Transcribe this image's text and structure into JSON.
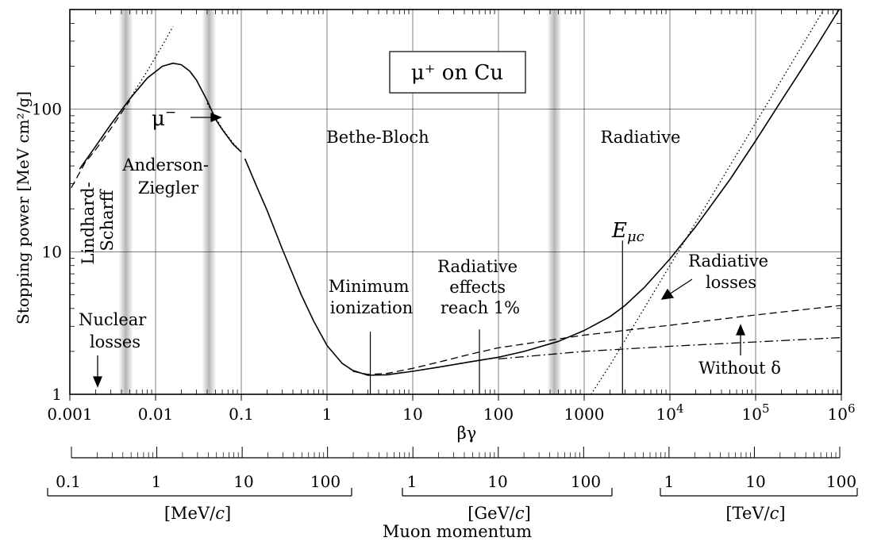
{
  "chart_data": {
    "type": "line",
    "title": "μ⁺ on Cu",
    "xlabel": "βγ",
    "ylabel": "Stopping power [MeV cm²/g]",
    "x_scale": "log",
    "y_scale": "log",
    "xlim": [
      0.001,
      1000000
    ],
    "ylim": [
      1,
      500
    ],
    "grid": true,
    "x_ticks": [
      {
        "value": 0.001,
        "label": "0.001"
      },
      {
        "value": 0.01,
        "label": "0.01"
      },
      {
        "value": 0.1,
        "label": "0.1"
      },
      {
        "value": 1,
        "label": "1"
      },
      {
        "value": 10,
        "label": "10"
      },
      {
        "value": 100,
        "label": "100"
      },
      {
        "value": 1000,
        "label": "1000"
      },
      {
        "value": 10000,
        "label": "10",
        "exp": "4"
      },
      {
        "value": 100000,
        "label": "10",
        "exp": "5"
      },
      {
        "value": 1000000,
        "label": "10",
        "exp": "6"
      }
    ],
    "y_ticks": [
      {
        "value": 1,
        "label": "1"
      },
      {
        "value": 10,
        "label": "10"
      },
      {
        "value": 100,
        "label": "100"
      }
    ],
    "series": [
      {
        "style": "solid",
        "x": [
          0.0013,
          0.002,
          0.003,
          0.005,
          0.008,
          0.012,
          0.016,
          0.02,
          0.025,
          0.03,
          0.04,
          0.05,
          0.06,
          0.08,
          0.1
        ],
        "y": [
          38,
          55,
          78,
          118,
          165,
          200,
          210,
          205,
          185,
          160,
          115,
          85,
          72,
          57,
          50
        ]
      },
      {
        "style": "solid",
        "x": [
          0.11,
          0.15,
          0.2,
          0.3,
          0.5,
          0.7,
          1,
          1.5,
          2,
          3,
          5,
          10,
          20,
          50,
          100,
          200,
          500,
          1000,
          2000,
          3000,
          5000,
          10000,
          20000,
          50000,
          100000,
          200000,
          500000,
          1000000
        ],
        "y": [
          45,
          29,
          19.5,
          10.5,
          5.0,
          3.25,
          2.2,
          1.65,
          1.47,
          1.36,
          1.37,
          1.45,
          1.55,
          1.7,
          1.82,
          2.0,
          2.35,
          2.8,
          3.5,
          4.2,
          5.6,
          8.9,
          15,
          32,
          60,
          115,
          270,
          530
        ]
      },
      {
        "style": "dashed",
        "x": [
          0.0009,
          0.0015,
          0.002,
          0.003,
          0.005
        ],
        "y": [
          24,
          42,
          52,
          73,
          115
        ]
      },
      {
        "style": "dashed",
        "x": [
          2,
          3,
          5,
          10,
          20,
          50,
          100,
          1000,
          10000,
          100000,
          1000000
        ],
        "y": [
          1.45,
          1.38,
          1.4,
          1.52,
          1.68,
          1.93,
          2.12,
          2.6,
          3.05,
          3.6,
          4.2
        ]
      },
      {
        "style": "dotted",
        "x": [
          0.005,
          0.008,
          0.012,
          0.016
        ],
        "y": [
          118,
          185,
          280,
          380
        ]
      },
      {
        "style": "dotted",
        "x": [
          0.04,
          0.05,
          0.06,
          0.08,
          0.1
        ],
        "y": [
          110,
          88,
          73,
          58,
          50
        ]
      },
      {
        "style": "dotted",
        "x": [
          1200,
          2000,
          3000,
          5000,
          10000,
          20000,
          50000,
          100000,
          200000,
          500000,
          1000000
        ],
        "y": [
          1,
          1.6,
          2.4,
          4.0,
          8.0,
          16,
          40,
          80,
          160,
          400,
          800
        ]
      },
      {
        "style": "dashdot",
        "x": [
          100,
          1000,
          10000,
          100000,
          1000000
        ],
        "y": [
          1.77,
          2.0,
          2.17,
          2.33,
          2.5
        ]
      }
    ],
    "shaded_bands_x": [
      0.0045,
      0.042,
      450
    ],
    "markers": [
      {
        "x": 3.2,
        "y_top": 2.75
      },
      {
        "x": 60,
        "y_top": 2.85
      },
      {
        "x": 2800,
        "y_top": 12
      }
    ],
    "annotations": {
      "lindhard": [
        "Lindhard-",
        "Scharff"
      ],
      "anderson": [
        "Anderson-",
        "Ziegler"
      ],
      "bethe": "Bethe-Bloch",
      "radiative": "Radiative",
      "nuclear": [
        "Nuclear",
        "losses"
      ],
      "minimum": [
        "Minimum",
        "ionization"
      ],
      "rad_effects": [
        "Radiative",
        "effects",
        "reach 1%"
      ],
      "rad_losses": [
        "Radiative",
        "losses"
      ],
      "without_delta": "Without δ",
      "mu_minus": "μ",
      "mu_minus_sup": "−",
      "e_muc_main": "E",
      "e_muc_sub": "μc"
    },
    "momentum_axis": {
      "label": "Muon momentum",
      "groups": [
        {
          "unit": "[MeV/c]",
          "unit_main": "[MeV/",
          "unit_italic": "c",
          "unit_end": "]",
          "ticks": [
            "0.1",
            "1",
            "10",
            "100"
          ]
        },
        {
          "unit": "[GeV/c]",
          "unit_main": "[GeV/",
          "unit_italic": "c",
          "unit_end": "]",
          "ticks": [
            "1",
            "10",
            "100"
          ]
        },
        {
          "unit": "[TeV/c]",
          "unit_main": "[TeV/",
          "unit_italic": "c",
          "unit_end": "]",
          "ticks": [
            "1",
            "10",
            "100"
          ]
        }
      ]
    }
  }
}
